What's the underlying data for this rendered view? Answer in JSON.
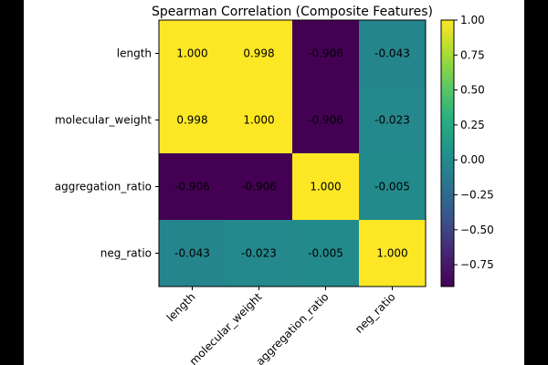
{
  "chart_data": {
    "type": "heatmap",
    "title": "Spearman Correlation (Composite Features)",
    "row_labels": [
      "length",
      "molecular_weight",
      "aggregation_ratio",
      "neg_ratio"
    ],
    "col_labels": [
      "length",
      "molecular_weight",
      "aggregation_ratio",
      "neg_ratio"
    ],
    "values": [
      [
        1.0,
        0.998,
        -0.906,
        -0.043
      ],
      [
        0.998,
        1.0,
        -0.906,
        -0.023
      ],
      [
        -0.906,
        -0.906,
        1.0,
        -0.005
      ],
      [
        -0.043,
        -0.023,
        -0.005,
        1.0
      ]
    ],
    "cell_labels": [
      [
        "1.000",
        "0.998",
        "-0.906",
        "-0.043"
      ],
      [
        "0.998",
        "1.000",
        "-0.906",
        "-0.023"
      ],
      [
        "-0.906",
        "-0.906",
        "1.000",
        "-0.005"
      ],
      [
        "-0.043",
        "-0.023",
        "-0.005",
        "1.000"
      ]
    ],
    "colormap": "viridis",
    "vmin": -0.906,
    "vmax": 1.0,
    "colorbar_ticks": [
      1.0,
      0.75,
      0.5,
      0.25,
      0.0,
      -0.25,
      -0.5,
      -0.75
    ],
    "colorbar_tick_labels": [
      "1.00",
      "0.75",
      "0.50",
      "0.25",
      "0.00",
      "−0.25",
      "−0.50",
      "−0.75"
    ],
    "xlabel": "",
    "ylabel": ""
  }
}
